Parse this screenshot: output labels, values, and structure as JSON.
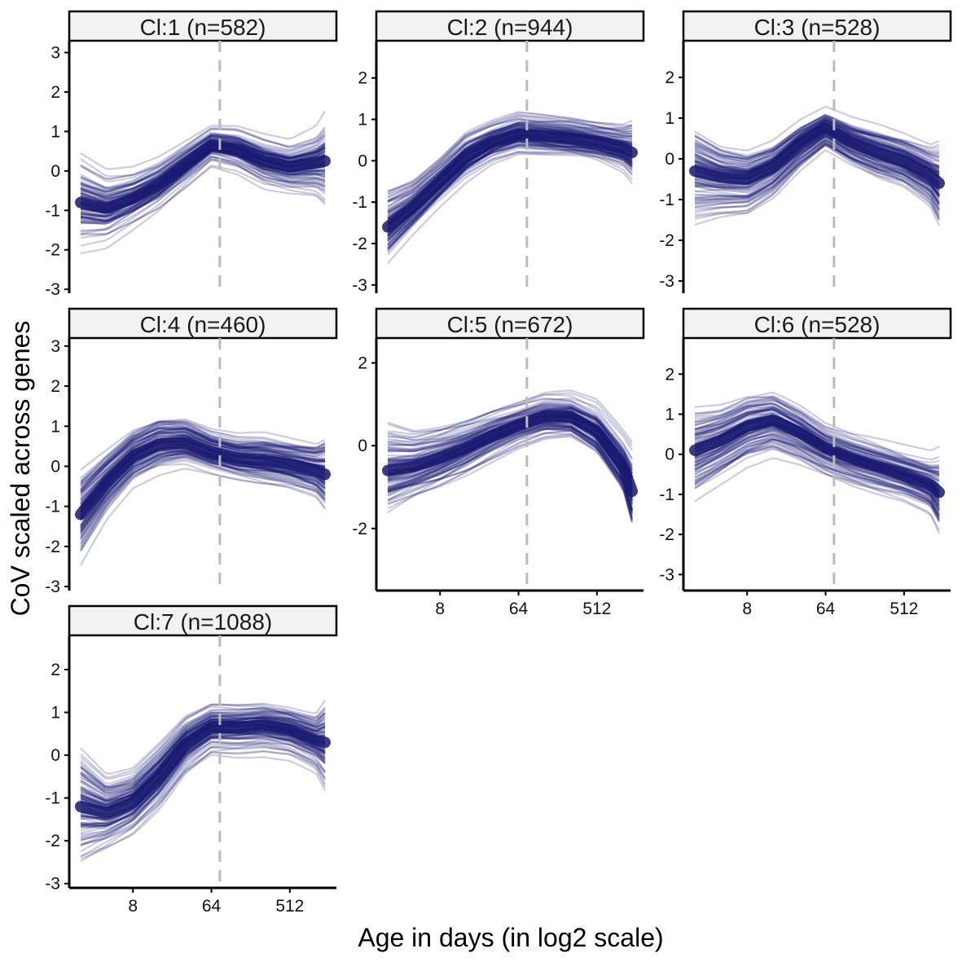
{
  "figure": {
    "xlabel": "Age in days (in log2 scale)",
    "ylabel": "CoV scaled across genes"
  },
  "chart_data": {
    "type": "line",
    "facet_layout": "3 columns, 3 rows",
    "x_scale": "log2",
    "x_range": [
      2,
      1300
    ],
    "x_ticks": [
      8,
      64,
      512
    ],
    "x_tick_labels": [
      "8",
      "64",
      "512"
    ],
    "reference_line_x": 80,
    "line_color": "#191970",
    "reference_line_color": "#bbbbbb",
    "grid": false,
    "panels": [
      {
        "label": "Cl:1 (n=582)",
        "ylim": [
          -3.1,
          3.3
        ],
        "y_ticks": [
          -3,
          -2,
          -1,
          0,
          1,
          2,
          3
        ],
        "y_tick_labels": [
          "-3",
          "-2",
          "-1",
          "0",
          "1",
          "2",
          "3"
        ],
        "x": [
          2,
          4,
          8,
          16,
          32,
          64,
          128,
          256,
          512,
          1024,
          1300
        ],
        "y_mean": [
          -0.8,
          -0.95,
          -0.7,
          -0.35,
          0.15,
          0.65,
          0.55,
          0.25,
          0.1,
          0.2,
          0.25
        ],
        "y_spread": [
          1.3,
          1.0,
          0.8,
          0.7,
          0.6,
          0.5,
          0.6,
          0.7,
          0.7,
          0.9,
          1.2
        ]
      },
      {
        "label": "Cl:2 (n=944)",
        "ylim": [
          -3.2,
          2.9
        ],
        "y_ticks": [
          -3,
          -2,
          -1,
          0,
          1,
          2
        ],
        "y_tick_labels": [
          "-3",
          "-2",
          "-1",
          "0",
          "1",
          "2"
        ],
        "x": [
          2,
          4,
          8,
          16,
          32,
          64,
          128,
          256,
          512,
          1024,
          1300
        ],
        "y_mean": [
          -1.6,
          -1.1,
          -0.5,
          0.1,
          0.45,
          0.65,
          0.6,
          0.55,
          0.45,
          0.3,
          0.2
        ],
        "y_spread": [
          1.0,
          0.7,
          0.6,
          0.6,
          0.5,
          0.5,
          0.5,
          0.5,
          0.5,
          0.6,
          0.8
        ]
      },
      {
        "label": "Cl:3 (n=528)",
        "ylim": [
          -3.3,
          2.9
        ],
        "y_ticks": [
          -3,
          -2,
          -1,
          0,
          1,
          2
        ],
        "y_tick_labels": [
          "-3",
          "-2",
          "-1",
          "0",
          "1",
          "2"
        ],
        "x": [
          2,
          4,
          8,
          16,
          32,
          64,
          128,
          256,
          512,
          1024,
          1300
        ],
        "y_mean": [
          -0.3,
          -0.45,
          -0.5,
          -0.2,
          0.35,
          0.75,
          0.4,
          0.15,
          -0.05,
          -0.4,
          -0.6
        ],
        "y_spread": [
          1.2,
          0.9,
          0.8,
          0.7,
          0.6,
          0.5,
          0.6,
          0.7,
          0.7,
          0.8,
          1.1
        ]
      },
      {
        "label": "Cl:4 (n=460)",
        "ylim": [
          -3.1,
          3.2
        ],
        "y_ticks": [
          -3,
          -2,
          -1,
          0,
          1,
          2,
          3
        ],
        "y_tick_labels": [
          "-3",
          "-2",
          "-1",
          "0",
          "1",
          "2",
          "3"
        ],
        "x": [
          2,
          4,
          8,
          16,
          32,
          64,
          128,
          256,
          512,
          1024,
          1300
        ],
        "y_mean": [
          -1.2,
          -0.4,
          0.25,
          0.55,
          0.6,
          0.35,
          0.2,
          0.15,
          0.05,
          -0.1,
          -0.2
        ],
        "y_spread": [
          1.2,
          0.9,
          0.8,
          0.8,
          0.7,
          0.6,
          0.6,
          0.7,
          0.7,
          0.8,
          1.1
        ]
      },
      {
        "label": "Cl:5 (n=672)",
        "ylim": [
          -3.5,
          2.6
        ],
        "y_ticks": [
          -2,
          0,
          2
        ],
        "y_tick_labels": [
          "-2",
          "0",
          "2"
        ],
        "x": [
          2,
          4,
          8,
          16,
          32,
          64,
          128,
          256,
          512,
          1024,
          1300
        ],
        "y_mean": [
          -0.6,
          -0.5,
          -0.3,
          -0.05,
          0.25,
          0.5,
          0.7,
          0.7,
          0.35,
          -0.5,
          -1.1
        ],
        "y_spread": [
          1.3,
          1.0,
          0.9,
          0.8,
          0.7,
          0.6,
          0.6,
          0.6,
          0.7,
          0.8,
          1.1
        ]
      },
      {
        "label": "Cl:6 (n=528)",
        "ylim": [
          -3.4,
          2.9
        ],
        "y_ticks": [
          -3,
          -2,
          -1,
          0,
          1,
          2
        ],
        "y_tick_labels": [
          "-3",
          "-2",
          "-1",
          "0",
          "1",
          "2"
        ],
        "x": [
          2,
          4,
          8,
          16,
          32,
          64,
          128,
          256,
          512,
          1024,
          1300
        ],
        "y_mean": [
          0.1,
          0.35,
          0.7,
          0.85,
          0.55,
          0.15,
          -0.1,
          -0.3,
          -0.5,
          -0.75,
          -0.95
        ],
        "y_spread": [
          1.2,
          1.0,
          0.9,
          0.8,
          0.7,
          0.6,
          0.6,
          0.6,
          0.6,
          0.7,
          1.0
        ]
      },
      {
        "label": "Cl:7 (n=1088)",
        "ylim": [
          -3.1,
          2.8
        ],
        "y_ticks": [
          -3,
          -2,
          -1,
          0,
          1,
          2
        ],
        "y_tick_labels": [
          "-3",
          "-2",
          "-1",
          "0",
          "1",
          "2"
        ],
        "x": [
          2,
          4,
          8,
          16,
          32,
          64,
          128,
          256,
          512,
          1024,
          1300
        ],
        "y_mean": [
          -1.2,
          -1.35,
          -1.1,
          -0.5,
          0.25,
          0.65,
          0.65,
          0.7,
          0.6,
          0.35,
          0.3
        ],
        "y_spread": [
          1.4,
          0.9,
          0.8,
          0.8,
          0.7,
          0.6,
          0.6,
          0.6,
          0.6,
          0.7,
          1.1
        ]
      }
    ]
  }
}
